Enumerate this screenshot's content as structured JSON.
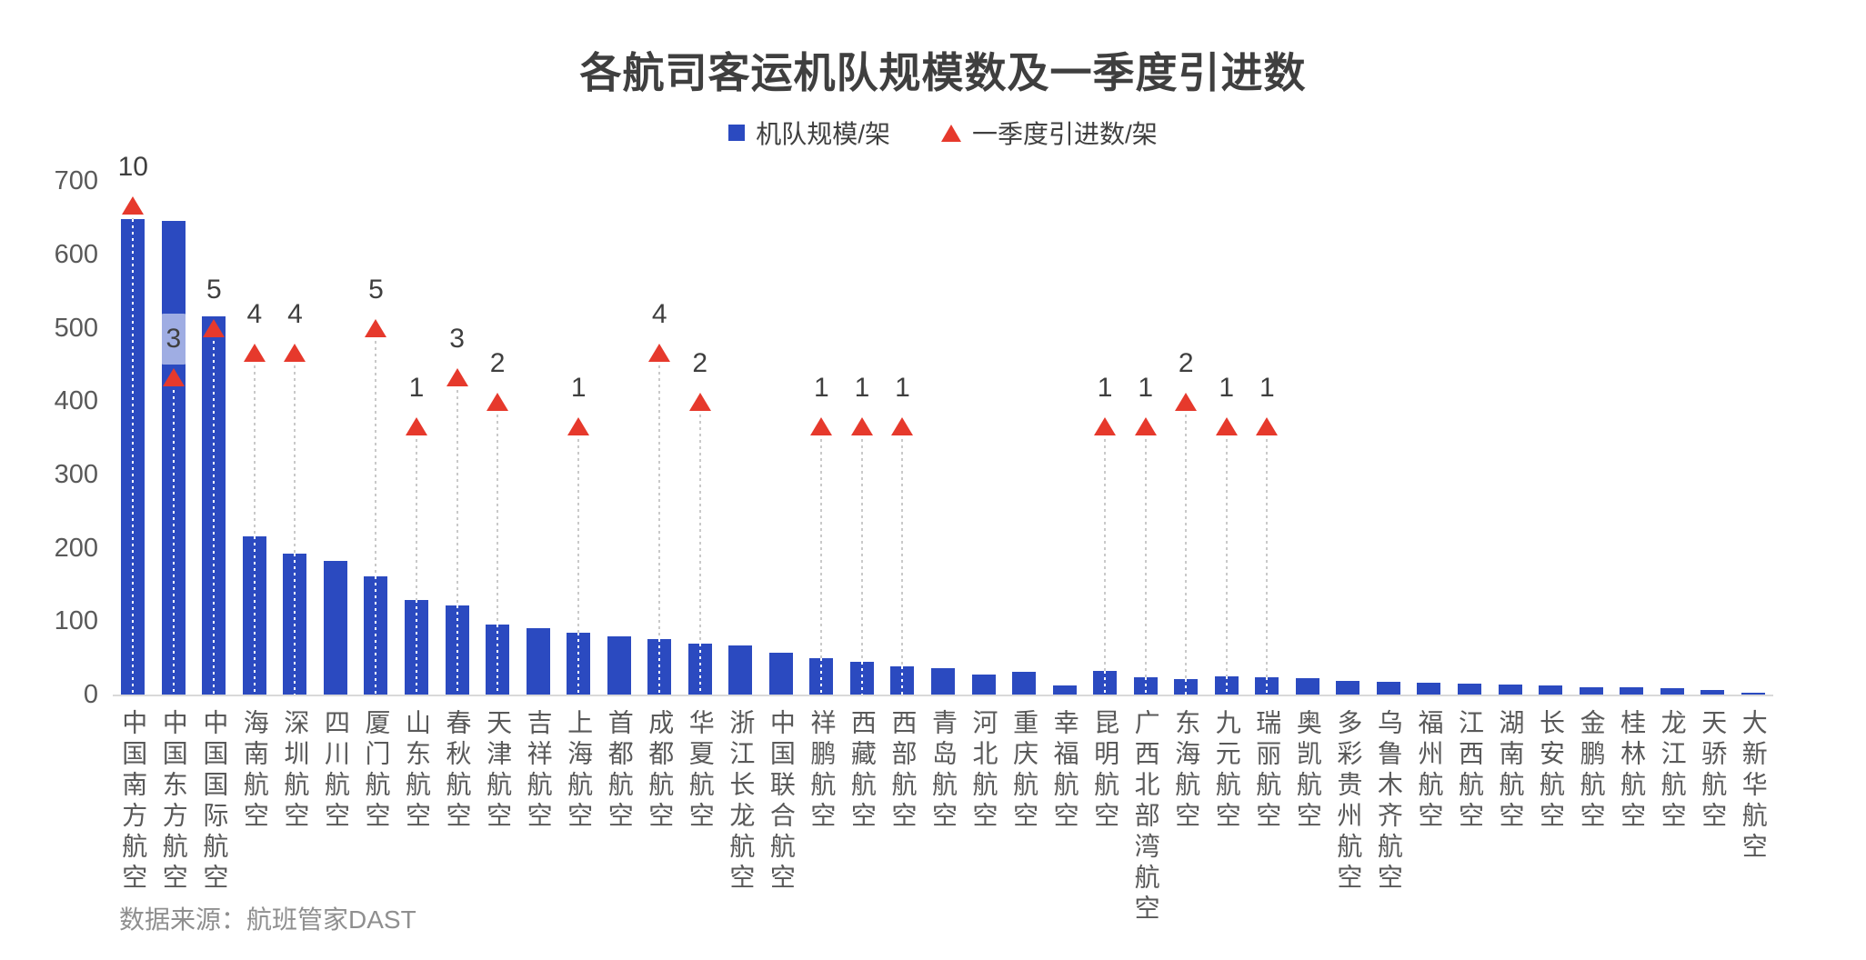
{
  "title": "各航司客运机队规模数及一季度引进数",
  "legend": {
    "fleet_label": "机队规模/架",
    "intro_label": "一季度引进数/架"
  },
  "source_note": "数据来源：航班管家DAST",
  "colors": {
    "bar": "#2b4ac0",
    "marker": "#e6392c",
    "title_text": "#3f3f3f",
    "axis_text": "#595959",
    "source_text": "#8f8f8f",
    "axis_line": "#d9d9d9",
    "boxed_label_bg": "rgba(255,255,255,0.55)"
  },
  "chart_data": {
    "type": "bar",
    "title": "各航司客运机队规模数及一季度引进数",
    "categories": [
      "中国南方航空",
      "中国东方航空",
      "中国国际航空",
      "海南航空",
      "深圳航空",
      "四川航空",
      "厦门航空",
      "山东航空",
      "春秋航空",
      "天津航空",
      "吉祥航空",
      "上海航空",
      "首都航空",
      "成都航空",
      "华夏航空",
      "浙江长龙航空",
      "中国联合航空",
      "祥鹏航空",
      "西藏航空",
      "西部航空",
      "青岛航空",
      "河北航空",
      "重庆航空",
      "幸福航空",
      "昆明航空",
      "广西北部湾航空",
      "东海航空",
      "九元航空",
      "瑞丽航空",
      "奥凯航空",
      "多彩贵州航空",
      "乌鲁木齐航空",
      "福州航空",
      "江西航空",
      "湖南航空",
      "长安航空",
      "金鹏航空",
      "桂林航空",
      "龙江航空",
      "天骄航空",
      "大新华航空"
    ],
    "series": [
      {
        "name": "机队规模/架",
        "type": "bar",
        "values": [
          648,
          645,
          515,
          215,
          192,
          182,
          161,
          129,
          121,
          96,
          90,
          84,
          79,
          76,
          70,
          67,
          57,
          50,
          44,
          38,
          36,
          27,
          31,
          13,
          32,
          24,
          21,
          25,
          24,
          22,
          19,
          17,
          16,
          15,
          14,
          12,
          10,
          10,
          9,
          6,
          3
        ]
      },
      {
        "name": "一季度引进数/架",
        "type": "scatter",
        "marker": "triangle",
        "values": [
          10,
          3,
          5,
          4,
          4,
          null,
          5,
          1,
          3,
          2,
          null,
          1,
          null,
          4,
          2,
          null,
          null,
          1,
          1,
          1,
          null,
          null,
          null,
          null,
          1,
          1,
          2,
          1,
          1,
          null,
          null,
          null,
          null,
          null,
          null,
          null,
          null,
          null,
          null,
          null,
          null
        ],
        "boxed_label_categories": [
          "中国东方航空"
        ]
      }
    ],
    "ylabel": "",
    "xlabel": "",
    "ylim": [
      0,
      700
    ],
    "yticks": [
      0,
      100,
      200,
      300,
      400,
      500,
      600,
      700
    ],
    "grid": false,
    "legend_position": "top-center"
  }
}
